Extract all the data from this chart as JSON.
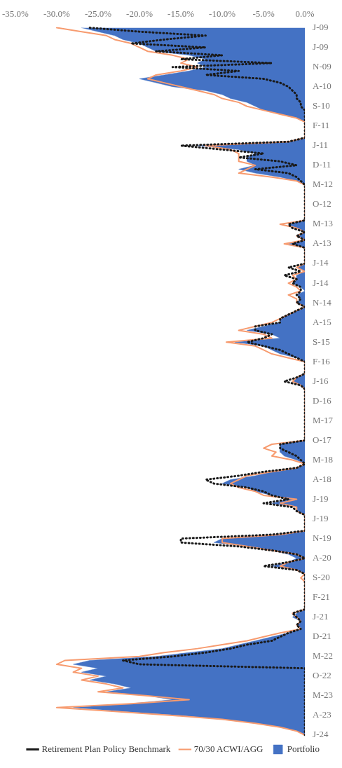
{
  "chart_data": {
    "type": "area",
    "categories": [
      "J-09",
      null,
      null,
      null,
      null,
      "J-09",
      null,
      null,
      null,
      null,
      "N-09",
      null,
      null,
      null,
      null,
      "A-10",
      null,
      null,
      null,
      null,
      "S-10",
      null,
      null,
      null,
      null,
      "F-11",
      null,
      null,
      null,
      null,
      "J-11",
      null,
      null,
      null,
      null,
      "D-11",
      null,
      null,
      null,
      null,
      "M-12",
      null,
      null,
      null,
      null,
      "O-12",
      null,
      null,
      null,
      null,
      "M-13",
      null,
      null,
      null,
      null,
      "A-13",
      null,
      null,
      null,
      null,
      "J-14",
      null,
      null,
      null,
      null,
      "J-14",
      null,
      null,
      null,
      null,
      "N-14",
      null,
      null,
      null,
      null,
      "A-15",
      null,
      null,
      null,
      null,
      "S-15",
      null,
      null,
      null,
      null,
      "F-16",
      null,
      null,
      null,
      null,
      "J-16",
      null,
      null,
      null,
      null,
      "D-16",
      null,
      null,
      null,
      null,
      "M-17",
      null,
      null,
      null,
      null,
      "O-17",
      null,
      null,
      null,
      null,
      "M-18",
      null,
      null,
      null,
      null,
      "A-18",
      null,
      null,
      null,
      null,
      "J-19",
      null,
      null,
      null,
      null,
      "J-19",
      null,
      null,
      null,
      null,
      "N-19",
      null,
      null,
      null,
      null,
      "A-20",
      null,
      null,
      null,
      null,
      "S-20",
      null,
      null,
      null,
      null,
      "F-21",
      null,
      null,
      null,
      null,
      "J-21",
      null,
      null,
      null,
      null,
      "D-21",
      null,
      null,
      null,
      null,
      "M-22",
      null,
      null,
      null,
      null,
      "O-22",
      null,
      null,
      null,
      null,
      "M-23",
      null,
      null,
      null,
      null,
      "A-23",
      null,
      null,
      null,
      null,
      "J-24"
    ],
    "series": [
      {
        "name": "Portfolio",
        "type": "area",
        "color": "#4472c4",
        "values": [
          -27,
          -25,
          -23,
          -22,
          -20,
          -19,
          -18,
          -14,
          -12,
          -13,
          -12,
          -14,
          -17,
          -20,
          -18,
          -16,
          -12,
          -10,
          -9,
          -7,
          -6,
          -5,
          -3,
          -1,
          0,
          0,
          0,
          0,
          0,
          -2,
          -13,
          -8,
          -6,
          -7,
          -7,
          -6,
          -8,
          -6,
          -3,
          -1,
          0,
          0,
          0,
          0,
          0,
          0,
          0,
          0,
          0,
          0,
          -2,
          -1,
          0,
          -1,
          0,
          -2,
          0,
          0,
          0,
          0,
          0,
          -1,
          0,
          -1,
          -1,
          -1.5,
          -0.5,
          0,
          -1,
          -0.5,
          -1,
          0,
          -1,
          -2,
          -3,
          -3,
          -5,
          -7,
          -4,
          -3,
          -8.5,
          -5,
          -4,
          -3,
          -1,
          0,
          0,
          0,
          0,
          -1,
          -1.5,
          -0.5,
          0,
          0,
          0,
          0,
          0,
          0,
          0,
          0,
          0,
          0,
          0,
          0,
          0,
          0,
          -3,
          -3,
          -3,
          -2.5,
          -1,
          0,
          -1,
          -4,
          -6,
          -9,
          -10,
          -7,
          -6,
          -4,
          -2,
          -4,
          -1,
          -1,
          0,
          0,
          0,
          0,
          0,
          -3,
          -10,
          -11,
          -7,
          -4,
          -2,
          -1,
          -2,
          -4,
          -1,
          0,
          0,
          0,
          0,
          0,
          0,
          0,
          0,
          0,
          0,
          -1,
          -1.5,
          -0.5,
          -1,
          -0.5,
          -2,
          -4,
          -6,
          -8,
          -10,
          -14,
          -18,
          -26,
          -28,
          -25,
          -27,
          -24,
          -26,
          -23,
          -21,
          -24,
          -19,
          -16,
          -21,
          -28,
          -22,
          -15,
          -10,
          -6,
          -3,
          -1,
          0
        ]
      },
      {
        "name": "70/30 ACWI/AGG",
        "type": "line",
        "color": "#f79b6f",
        "values": [
          -30,
          -27,
          -24,
          -23,
          -21,
          -20,
          -19,
          -16,
          -14,
          -15,
          -13,
          -15,
          -18,
          -19,
          -17,
          -15,
          -13,
          -11,
          -10,
          -8,
          -7,
          -5,
          -3,
          -1,
          0,
          0,
          0,
          0,
          0,
          -2,
          -12,
          -9,
          -8,
          -8,
          -8,
          -6,
          -7,
          -8,
          -4,
          -1,
          0,
          0,
          0,
          0,
          0,
          0,
          0,
          0,
          0,
          0,
          -3,
          -1,
          0,
          -1,
          0,
          -2.5,
          0,
          0,
          0,
          0,
          0,
          -1,
          0,
          -1.5,
          -1,
          -2,
          -1,
          -0.5,
          -2,
          -1,
          -1,
          0,
          -1,
          -2,
          -3,
          -4,
          -6,
          -8,
          -5,
          -4,
          -9.5,
          -6,
          -5,
          -4,
          -2,
          0,
          0,
          0,
          0,
          -1,
          -1.5,
          -0.5,
          0,
          0,
          0,
          0,
          0,
          0,
          0,
          0,
          0,
          0,
          0,
          0,
          0,
          0,
          -4,
          -5,
          -3.5,
          -4,
          -1.5,
          0,
          -1,
          -4,
          -7,
          -8,
          -9,
          -8,
          -6,
          -5,
          -1,
          -3,
          -1,
          -1,
          0,
          0,
          0,
          0,
          0,
          -3,
          -10,
          -10,
          -7,
          -4,
          -1,
          0,
          -2,
          -3,
          -1,
          0,
          -0.5,
          0,
          0,
          0,
          0,
          0,
          0,
          0,
          0,
          -1.5,
          -1,
          -0.5,
          -1,
          -0.5,
          -3,
          -5,
          -7,
          -10,
          -13,
          -17,
          -20,
          -29,
          -30,
          -27,
          -28,
          -25,
          -27,
          -24,
          -22,
          -25,
          -19,
          -14,
          -21,
          -30,
          -23,
          -16,
          -10,
          -6,
          -3,
          -1,
          0
        ]
      },
      {
        "name": "Retirement Plan Policy Benchmark",
        "type": "line",
        "line_style": "dotted",
        "color": "#1a1a1a",
        "values": [
          -26,
          -20,
          -12,
          -17,
          -21,
          -12,
          -18,
          -10,
          -15,
          -4,
          -16,
          -8,
          -12,
          -5,
          -3,
          -2,
          -1.5,
          -1,
          -1,
          -0.5,
          -0.5,
          0,
          0,
          0,
          0,
          0,
          0,
          0,
          0,
          -2,
          -15,
          -10,
          -5,
          -8,
          -3,
          -1,
          -6,
          -2,
          -1,
          -0.5,
          0,
          0,
          0,
          0,
          0,
          0,
          0,
          0,
          0,
          0,
          -2,
          -1.5,
          0,
          -1,
          0,
          -1.5,
          0,
          0,
          0,
          0,
          0,
          -2,
          -0.5,
          -2.5,
          -1,
          -1.5,
          -0.5,
          -0.5,
          -1,
          -0.5,
          -1,
          0,
          -1,
          -2,
          -3,
          -3,
          -6,
          -6,
          -4,
          -5,
          -7,
          -5,
          -3,
          -2,
          -1,
          0,
          0,
          0,
          0,
          -1,
          -2.5,
          -0.5,
          0,
          0,
          0,
          0,
          0,
          0,
          0,
          0,
          0,
          0,
          0,
          0,
          0,
          0,
          -3,
          -3,
          -2,
          -1,
          -0.5,
          0,
          -1,
          -5,
          -8,
          -12,
          -11,
          -7,
          -5,
          -4,
          -2,
          -5,
          -1.5,
          -1,
          0,
          0,
          0,
          0,
          0,
          -4,
          -15,
          -15,
          -8,
          -4,
          -1,
          0,
          -2,
          -5,
          -1,
          0,
          0,
          0,
          0,
          0,
          0,
          0,
          0,
          0,
          0,
          -1.5,
          -1,
          -0.5,
          -1,
          -0.5,
          -2,
          -3,
          -4,
          -7,
          -9,
          -12,
          -16,
          -22,
          -20,
          0,
          0,
          0,
          0,
          0,
          0,
          0,
          0,
          0,
          0,
          0,
          0,
          0,
          0,
          0,
          0,
          0,
          0
        ]
      }
    ],
    "orientation": "horizontal",
    "xlim": [
      -35,
      0
    ],
    "xticks": [
      {
        "value": -35,
        "label": "-35.0%"
      },
      {
        "value": -30,
        "label": "-30.0%"
      },
      {
        "value": -25,
        "label": "-25.0%"
      },
      {
        "value": -20,
        "label": "-20.0%"
      },
      {
        "value": -15,
        "label": "-15.0%"
      },
      {
        "value": -10,
        "label": "-10.0%"
      },
      {
        "value": -5,
        "label": "-5.0%"
      },
      {
        "value": 0,
        "label": "0.0%"
      }
    ],
    "grid": false,
    "legend": "bottom"
  }
}
